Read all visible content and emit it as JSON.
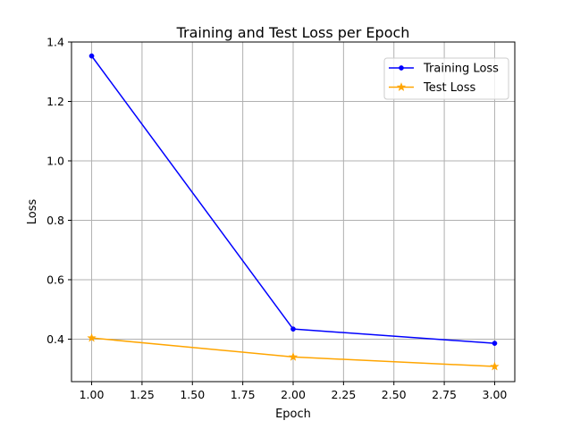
{
  "chart_data": {
    "type": "line",
    "title": "Training and Test Loss per Epoch",
    "xlabel": "Epoch",
    "ylabel": "Loss",
    "x": [
      1,
      2,
      3
    ],
    "xlim": [
      0.9,
      3.1
    ],
    "ylim": [
      0.257,
      1.4
    ],
    "xticks": [
      1.0,
      1.25,
      1.5,
      1.75,
      2.0,
      2.25,
      2.5,
      2.75,
      3.0
    ],
    "xtick_labels": [
      "1.00",
      "1.25",
      "1.50",
      "1.75",
      "2.00",
      "2.25",
      "2.50",
      "2.75",
      "3.00"
    ],
    "yticks": [
      0.4,
      0.6,
      0.8,
      1.0,
      1.2,
      1.4
    ],
    "ytick_labels": [
      "0.4",
      "0.6",
      "0.8",
      "1.0",
      "1.2",
      "1.4"
    ],
    "grid": true,
    "legend_position": "top-right",
    "series": [
      {
        "name": "Training Loss",
        "values": [
          1.353,
          0.434,
          0.386
        ],
        "color": "#0000ff",
        "marker": "point"
      },
      {
        "name": "Test Loss",
        "values": [
          0.404,
          0.34,
          0.308
        ],
        "color": "#ffa500",
        "marker": "star"
      }
    ]
  }
}
